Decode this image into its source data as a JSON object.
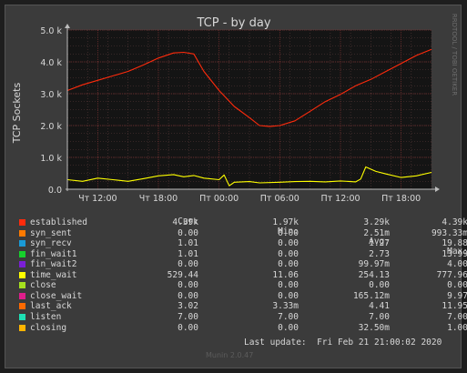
{
  "chart_data": {
    "type": "line",
    "title": "TCP - by day",
    "ylabel": "TCP Sockets",
    "side_label": "RRDTOOL / TOBI OETIKER",
    "ylim": [
      0,
      5000
    ],
    "yticks": [
      {
        "value": 0,
        "label": "0.0"
      },
      {
        "value": 1000,
        "label": "1.0 k"
      },
      {
        "value": 2000,
        "label": "2.0 k"
      },
      {
        "value": 3000,
        "label": "3.0 k"
      },
      {
        "value": 4000,
        "label": "4.0 k"
      },
      {
        "value": 5000,
        "label": "5.0 k"
      }
    ],
    "xlim": [
      "Thu 09:00",
      "Fri 21:00"
    ],
    "xticks": [
      "Чт 12:00",
      "Чт 18:00",
      "Пт 00:00",
      "Пт 06:00",
      "Пт 12:00",
      "Пт 18:00"
    ],
    "series": [
      {
        "name": "established",
        "color": "#ff2b0c",
        "x": [
          "Thu 09:00",
          "Thu 10:30",
          "Thu 12:00",
          "Thu 13:30",
          "Thu 15:00",
          "Thu 16:30",
          "Thu 18:00",
          "Thu 19:30",
          "Thu 20:30",
          "Thu 21:30",
          "Thu 22:30",
          "Fri 00:00",
          "Fri 01:30",
          "Fri 03:00",
          "Fri 04:00",
          "Fri 05:00",
          "Fri 06:00",
          "Fri 07:30",
          "Fri 09:00",
          "Fri 10:30",
          "Fri 12:00",
          "Fri 13:30",
          "Fri 15:00",
          "Fri 16:30",
          "Fri 18:00",
          "Fri 19:30",
          "Fri 21:00"
        ],
        "values": [
          3100,
          3280,
          3420,
          3560,
          3700,
          3900,
          4120,
          4280,
          4300,
          4250,
          3700,
          3100,
          2600,
          2250,
          2000,
          1970,
          2000,
          2150,
          2450,
          2750,
          2980,
          3250,
          3450,
          3700,
          3950,
          4200,
          4390
        ]
      },
      {
        "name": "time_wait",
        "color": "#ffff00",
        "x": [
          "Thu 09:00",
          "Thu 10:30",
          "Thu 12:00",
          "Thu 13:30",
          "Thu 15:00",
          "Thu 16:30",
          "Thu 18:00",
          "Thu 19:30",
          "Thu 20:30",
          "Thu 21:30",
          "Thu 22:30",
          "Fri 00:00",
          "Fri 00:30",
          "Fri 01:00",
          "Fri 01:30",
          "Fri 03:00",
          "Fri 04:00",
          "Fri 06:00",
          "Fri 07:30",
          "Fri 09:00",
          "Fri 10:30",
          "Fri 12:00",
          "Fri 13:30",
          "Fri 14:00",
          "Fri 14:30",
          "Fri 15:30",
          "Fri 16:30",
          "Fri 18:00",
          "Fri 19:30",
          "Fri 21:00"
        ],
        "values": [
          300,
          250,
          350,
          300,
          250,
          330,
          420,
          460,
          390,
          430,
          350,
          300,
          450,
          110,
          220,
          240,
          200,
          220,
          240,
          250,
          230,
          260,
          230,
          320,
          700,
          560,
          480,
          370,
          420,
          529
        ]
      }
    ]
  },
  "legend": {
    "headers": [
      "Cur:",
      "Min:",
      "Avg:",
      "Max:"
    ],
    "rows": [
      {
        "name": "established",
        "color": "#ff2b0c",
        "cur": "4.39k",
        "min": "1.97k",
        "avg": "3.29k",
        "max": "4.39k"
      },
      {
        "name": "syn_sent",
        "color": "#ff7a00",
        "cur": "0.00",
        "min": "0.00",
        "avg": "2.51m",
        "max": "993.33m"
      },
      {
        "name": "syn_recv",
        "color": "#1a9ad6",
        "cur": "1.01",
        "min": "0.00",
        "avg": "1.27",
        "max": "19.88"
      },
      {
        "name": "fin_wait1",
        "color": "#16d02c",
        "cur": "1.01",
        "min": "0.00",
        "avg": "2.73",
        "max": "13.99"
      },
      {
        "name": "fin_wait2",
        "color": "#7a1fd6",
        "cur": "0.00",
        "min": "0.00",
        "avg": "99.97m",
        "max": "4.00"
      },
      {
        "name": "time_wait",
        "color": "#ffff00",
        "cur": "529.44",
        "min": "11.06",
        "avg": "254.13",
        "max": "777.96"
      },
      {
        "name": "close",
        "color": "#a6e01e",
        "cur": "0.00",
        "min": "0.00",
        "avg": "0.00",
        "max": "0.00"
      },
      {
        "name": "close_wait",
        "color": "#e01e8c",
        "cur": "0.00",
        "min": "0.00",
        "avg": "165.12m",
        "max": "9.97"
      },
      {
        "name": "last_ack",
        "color": "#ff6a00",
        "cur": "3.02",
        "min": "3.33m",
        "avg": "4.41",
        "max": "11.95"
      },
      {
        "name": "listen",
        "color": "#1ee0b4",
        "cur": "7.00",
        "min": "7.00",
        "avg": "7.00",
        "max": "7.00"
      },
      {
        "name": "closing",
        "color": "#ffb400",
        "cur": "0.00",
        "min": "0.00",
        "avg": "32.50m",
        "max": "1.00"
      }
    ],
    "last_update": "Last update:  Fri Feb 21 21:00:02 2020"
  },
  "footer": "Munin 2.0.47"
}
